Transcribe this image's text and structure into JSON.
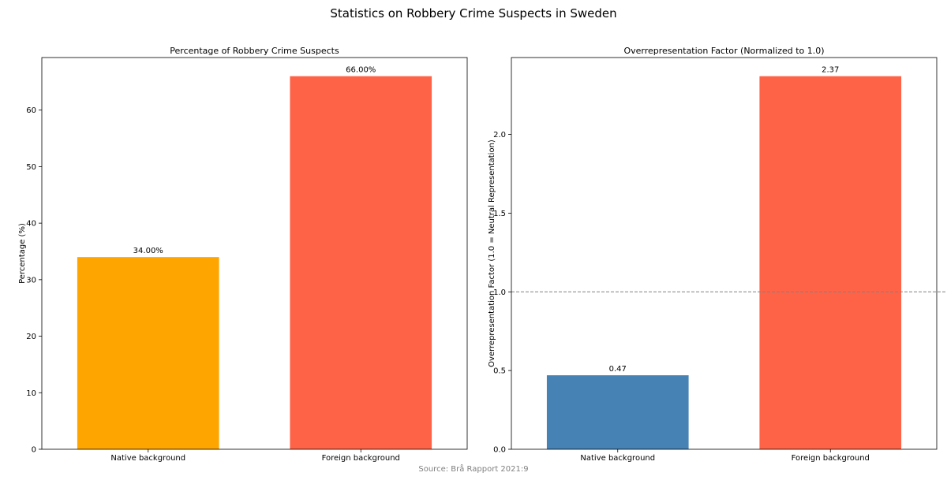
{
  "figure": {
    "suptitle": "Statistics on Robbery Crime Suspects in Sweden",
    "source": "Source: Brå Rapport 2021:9"
  },
  "chart_data": [
    {
      "type": "bar",
      "title": "Percentage of Robbery Crime Suspects",
      "xlabel": "",
      "ylabel": "Percentage (%)",
      "categories": [
        "Native background",
        "Foreign background"
      ],
      "values": [
        34.0,
        66.0
      ],
      "data_labels": [
        "34.00%",
        "66.00%"
      ],
      "colors": [
        "#ffa500",
        "#ff6347"
      ],
      "ylim": [
        0,
        69.3
      ],
      "yticks": [
        0,
        10,
        20,
        30,
        40,
        50,
        60
      ],
      "grid": false
    },
    {
      "type": "bar",
      "title": "Overrepresentation Factor (Normalized to 1.0)",
      "xlabel": "",
      "ylabel": "Overrepresentation Factor (1.0 = Neutral Representation)",
      "categories": [
        "Native background",
        "Foreign background"
      ],
      "values": [
        0.47,
        2.37
      ],
      "data_labels": [
        "0.47",
        "2.37"
      ],
      "colors": [
        "#4682b4",
        "#ff6347"
      ],
      "ylim": [
        0,
        2.4885
      ],
      "yticks": [
        0.0,
        0.5,
        1.0,
        1.5,
        2.0
      ],
      "reference_line": {
        "y": 1.0,
        "style": "dashed",
        "color": "#808080"
      },
      "grid": false
    }
  ]
}
